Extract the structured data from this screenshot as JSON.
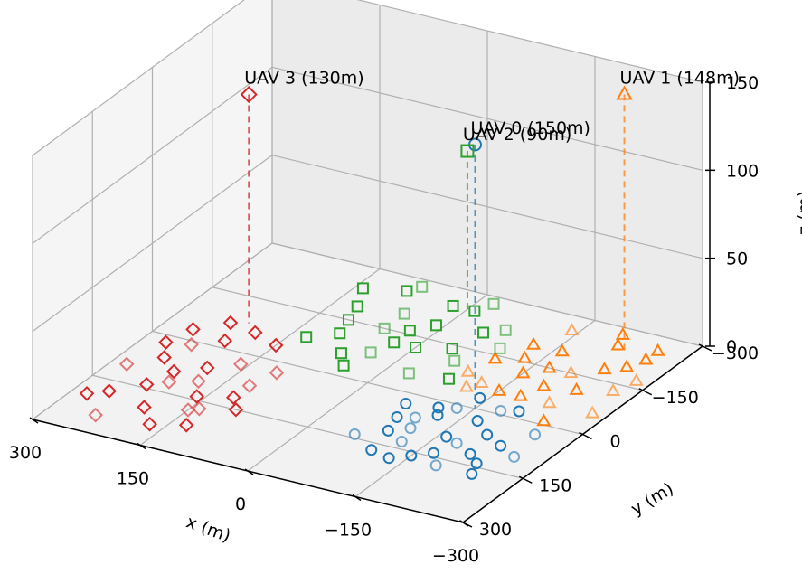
{
  "chart_data": {
    "type": "scatter3d",
    "xlabel": "x (m)",
    "ylabel": "y (m)",
    "zlabel": "z (m)",
    "xlim": [
      -300,
      300
    ],
    "ylim": [
      -300,
      300
    ],
    "zlim": [
      0,
      150
    ],
    "x_ticks": [
      "300",
      "150",
      "0",
      "−150",
      "−300"
    ],
    "y_ticks": [
      "−300",
      "−150",
      "0",
      "150",
      "300"
    ],
    "z_ticks": [
      "0",
      "50",
      "100",
      "150"
    ],
    "grid": true,
    "uavs": [
      {
        "label": "UAV 0 (150m)",
        "x": -150,
        "y": 0,
        "z": 150,
        "marker": "circle",
        "color": "#1f77b4"
      },
      {
        "label": "UAV 1 (148m)",
        "x": -230,
        "y": -230,
        "z": 148,
        "marker": "triangle",
        "color": "#ff7f0e"
      },
      {
        "label": "UAV 2 (90m)",
        "x": 0,
        "y": -250,
        "z": 90,
        "marker": "square",
        "color": "#2ca02c"
      },
      {
        "label": "UAV 3 (130m)",
        "x": 210,
        "y": -80,
        "z": 130,
        "marker": "diamond",
        "color": "#d62728"
      }
    ],
    "ground_users": [
      {
        "group": 0,
        "marker": "circle",
        "color": "#1f77b4",
        "points": [
          [
            -130,
            10
          ],
          [
            -170,
            30
          ],
          [
            -200,
            -20
          ],
          [
            -100,
            60
          ],
          [
            -160,
            90
          ],
          [
            -210,
            120
          ],
          [
            -120,
            130
          ],
          [
            -150,
            160
          ],
          [
            -90,
            110
          ],
          [
            -190,
            170
          ],
          [
            -230,
            80
          ],
          [
            -110,
            20
          ],
          [
            -250,
            30
          ],
          [
            -80,
            70
          ],
          [
            -140,
            -30
          ],
          [
            -180,
            100
          ],
          [
            -230,
            140
          ],
          [
            -100,
            170
          ],
          [
            -60,
            140
          ],
          [
            -120,
            40
          ],
          [
            -200,
            60
          ],
          [
            -260,
            100
          ],
          [
            -70,
            30
          ],
          [
            -170,
            140
          ],
          [
            -110,
            90
          ],
          [
            -240,
            170
          ],
          [
            -130,
            180
          ],
          [
            -180,
            -10
          ]
        ]
      },
      {
        "group": 1,
        "marker": "triangle",
        "color": "#ff7f0e",
        "points": [
          [
            -120,
            -70
          ],
          [
            -150,
            -120
          ],
          [
            -180,
            -60
          ],
          [
            -200,
            -150
          ],
          [
            -230,
            -110
          ],
          [
            -250,
            -200
          ],
          [
            -270,
            -130
          ],
          [
            -160,
            -200
          ],
          [
            -100,
            -140
          ],
          [
            -140,
            -260
          ],
          [
            -210,
            -250
          ],
          [
            -260,
            -260
          ],
          [
            -280,
            -170
          ],
          [
            -190,
            -100
          ],
          [
            -120,
            -200
          ],
          [
            -220,
            -60
          ],
          [
            -240,
            -10
          ],
          [
            -170,
            -150
          ],
          [
            -90,
            -90
          ],
          [
            -130,
            -160
          ],
          [
            -200,
            -280
          ],
          [
            -280,
            -60
          ],
          [
            -230,
            -180
          ],
          [
            -150,
            -60
          ],
          [
            -110,
            -50
          ],
          [
            -260,
            -230
          ]
        ]
      },
      {
        "group": 2,
        "marker": "square",
        "color": "#2ca02c",
        "points": [
          [
            60,
            -200
          ],
          [
            30,
            -160
          ],
          [
            -10,
            -250
          ],
          [
            80,
            -280
          ],
          [
            120,
            -190
          ],
          [
            0,
            -120
          ],
          [
            40,
            -80
          ],
          [
            -40,
            -140
          ],
          [
            100,
            -110
          ],
          [
            -70,
            -220
          ],
          [
            20,
            -250
          ],
          [
            70,
            -60
          ],
          [
            -30,
            -50
          ],
          [
            140,
            -240
          ],
          [
            110,
            -150
          ],
          [
            -90,
            -170
          ],
          [
            50,
            -30
          ],
          [
            10,
            -190
          ],
          [
            -60,
            -110
          ],
          [
            90,
            -260
          ],
          [
            130,
            -80
          ],
          [
            -20,
            -280
          ],
          [
            30,
            -120
          ],
          [
            -80,
            -60
          ],
          [
            60,
            -150
          ],
          [
            -50,
            -200
          ]
        ]
      },
      {
        "group": 3,
        "marker": "diamond",
        "color": "#d62728",
        "points": [
          [
            160,
            30
          ],
          [
            210,
            -20
          ],
          [
            250,
            60
          ],
          [
            180,
            100
          ],
          [
            230,
            140
          ],
          [
            270,
            20
          ],
          [
            140,
            170
          ],
          [
            200,
            200
          ],
          [
            260,
            180
          ],
          [
            120,
            80
          ],
          [
            150,
            -40
          ],
          [
            230,
            -70
          ],
          [
            280,
            100
          ],
          [
            100,
            150
          ],
          [
            190,
            60
          ],
          [
            240,
            250
          ],
          [
            170,
            240
          ],
          [
            130,
            220
          ],
          [
            210,
            120
          ],
          [
            160,
            140
          ],
          [
            260,
            -30
          ],
          [
            110,
            30
          ],
          [
            190,
            -60
          ],
          [
            220,
            90
          ],
          [
            150,
            180
          ],
          [
            280,
            200
          ],
          [
            120,
            120
          ],
          [
            240,
            10
          ]
        ]
      }
    ]
  }
}
